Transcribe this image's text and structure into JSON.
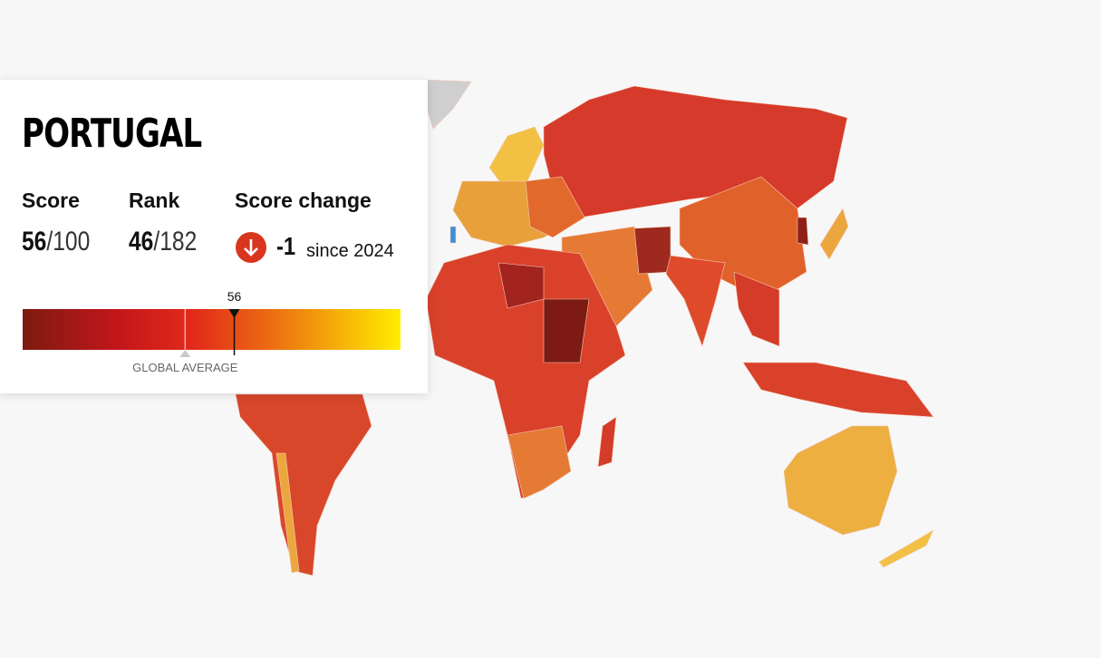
{
  "country": "PORTUGAL",
  "score_heading": "Score",
  "score": 56,
  "score_of": "/100",
  "rank_heading": "Rank",
  "rank": 46,
  "rank_of": "/182",
  "change_heading": "Score change",
  "change": -1,
  "since": "since 2024",
  "scale": [
    0,
    100
  ],
  "global_average": {
    "label": "GLOBAL AVERAGE",
    "value": 43
  }
}
